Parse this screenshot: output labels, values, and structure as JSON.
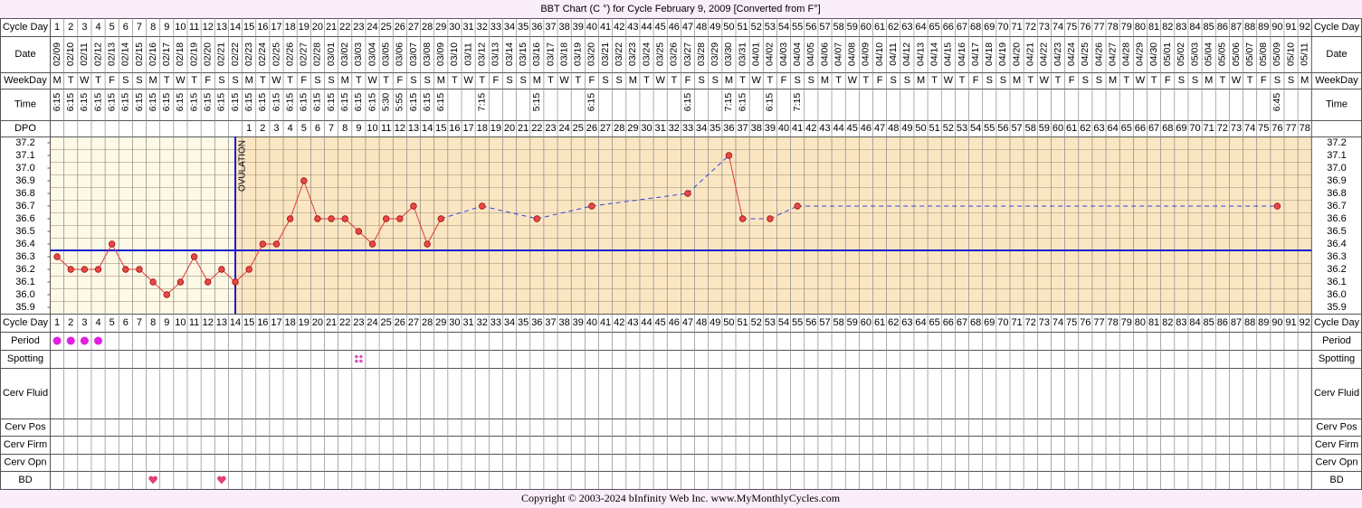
{
  "chart_data": {
    "type": "line",
    "title": "BBT Chart (C °) for Cycle February 9, 2009  [Converted from F°]",
    "footer": "Copyright © 2003-2024 bInfinity Web Inc.     www.MyMonthlyCycles.com",
    "row_labels": {
      "cycle_day": "Cycle Day",
      "date": "Date",
      "weekday": "WeekDay",
      "time": "Time",
      "dpo": "DPO",
      "period": "Period",
      "spotting": "Spotting",
      "cerv_fluid": "Cerv Fluid",
      "cerv_pos": "Cerv Pos",
      "cerv_firm": "Cerv Firm",
      "cerv_opn": "Cerv Opn",
      "bd": "BD"
    },
    "annotation": "OVULATION",
    "ovulation_day": 14,
    "coverline": 36.35,
    "cycle_days": [
      1,
      2,
      3,
      4,
      5,
      6,
      7,
      8,
      9,
      10,
      11,
      12,
      13,
      14,
      15,
      16,
      17,
      18,
      19,
      20,
      21,
      22,
      23,
      24,
      25,
      26,
      27,
      28,
      29,
      30,
      31,
      32,
      33,
      34,
      35,
      36,
      37,
      38,
      39,
      40,
      41,
      42,
      43,
      44,
      45,
      46,
      47,
      48,
      49,
      50,
      51,
      52,
      53,
      54,
      55,
      56,
      57,
      58,
      59,
      60,
      61,
      62,
      63,
      64,
      65,
      66,
      67,
      68,
      69,
      70,
      71,
      72,
      73,
      74,
      75,
      76,
      77,
      78,
      79,
      80,
      81,
      82,
      83,
      84,
      85,
      86,
      87,
      88,
      89,
      90,
      91,
      92
    ],
    "dates": [
      "02/09",
      "02/10",
      "02/11",
      "02/12",
      "02/13",
      "02/14",
      "02/15",
      "02/16",
      "02/17",
      "02/18",
      "02/19",
      "02/20",
      "02/21",
      "02/22",
      "02/23",
      "02/24",
      "02/25",
      "02/26",
      "02/27",
      "02/28",
      "03/01",
      "03/02",
      "03/03",
      "03/04",
      "03/05",
      "03/06",
      "03/07",
      "03/08",
      "03/09",
      "03/10",
      "03/11",
      "03/12",
      "03/13",
      "03/14",
      "03/15",
      "03/16",
      "03/17",
      "03/18",
      "03/19",
      "03/20",
      "03/21",
      "03/22",
      "03/23",
      "03/24",
      "03/25",
      "03/26",
      "03/27",
      "03/28",
      "03/29",
      "03/30",
      "03/31",
      "04/01",
      "04/02",
      "04/03",
      "04/04",
      "04/05",
      "04/06",
      "04/07",
      "04/08",
      "04/09",
      "04/10",
      "04/11",
      "04/12",
      "04/13",
      "04/14",
      "04/15",
      "04/16",
      "04/17",
      "04/18",
      "04/19",
      "04/20",
      "04/21",
      "04/22",
      "04/23",
      "04/24",
      "04/25",
      "04/26",
      "04/27",
      "04/28",
      "04/29",
      "04/30",
      "05/01",
      "05/02",
      "05/03",
      "05/04",
      "05/05",
      "05/06",
      "05/07",
      "05/08",
      "05/09",
      "05/10",
      "05/11"
    ],
    "weekdays": [
      "M",
      "T",
      "W",
      "T",
      "F",
      "S",
      "S",
      "M",
      "T",
      "W",
      "T",
      "F",
      "S",
      "S",
      "M",
      "T",
      "W",
      "T",
      "F",
      "S",
      "S",
      "M",
      "T",
      "W",
      "T",
      "F",
      "S",
      "S",
      "M",
      "T",
      "W",
      "T",
      "F",
      "S",
      "S",
      "M",
      "T",
      "W",
      "T",
      "F",
      "S",
      "S",
      "M",
      "T",
      "W",
      "T",
      "F",
      "S",
      "S",
      "M",
      "T",
      "W",
      "T",
      "F",
      "S",
      "S",
      "M",
      "T",
      "W",
      "T",
      "F",
      "S",
      "S",
      "M",
      "T",
      "W",
      "T",
      "F",
      "S",
      "S",
      "M",
      "T",
      "W",
      "T",
      "F",
      "S",
      "S",
      "M",
      "T",
      "W",
      "T",
      "F",
      "S",
      "S",
      "M",
      "T",
      "W",
      "T",
      "F",
      "S",
      "S",
      "M"
    ],
    "times": [
      "6:15",
      "6:15",
      "6:15",
      "6:15",
      "6:15",
      "6:15",
      "6:15",
      "6:15",
      "6:15",
      "6:15",
      "6:15",
      "6:15",
      "6:15",
      "6:15",
      "6:15",
      "6:15",
      "6:15",
      "6:15",
      "6:15",
      "6:15",
      "6:15",
      "6:15",
      "6:15",
      "6:15",
      "5:30",
      "5:55",
      "6:15",
      "6:15",
      "6:15",
      null,
      null,
      "7:15",
      null,
      null,
      null,
      "5:15",
      null,
      null,
      null,
      "6:15",
      null,
      null,
      null,
      null,
      null,
      null,
      "6:15",
      null,
      null,
      "7:15",
      "6:15",
      null,
      "6:15",
      null,
      "7:15",
      null,
      null,
      null,
      null,
      null,
      null,
      null,
      null,
      null,
      null,
      null,
      null,
      null,
      null,
      null,
      null,
      null,
      null,
      null,
      null,
      null,
      null,
      null,
      null,
      null,
      null,
      null,
      null,
      null,
      null,
      null,
      null,
      null,
      null,
      "6:45",
      null,
      null
    ],
    "dpo": [
      null,
      null,
      null,
      null,
      null,
      null,
      null,
      null,
      null,
      null,
      null,
      null,
      null,
      null,
      1,
      2,
      3,
      4,
      5,
      6,
      7,
      8,
      9,
      10,
      11,
      12,
      13,
      14,
      15,
      16,
      17,
      18,
      19,
      20,
      21,
      22,
      23,
      24,
      25,
      26,
      27,
      28,
      29,
      30,
      31,
      32,
      33,
      34,
      35,
      36,
      37,
      38,
      39,
      40,
      41,
      42,
      43,
      44,
      45,
      46,
      47,
      48,
      49,
      50,
      51,
      52,
      53,
      54,
      55,
      56,
      57,
      58,
      59,
      60,
      61,
      62,
      63,
      64,
      65,
      66,
      67,
      68,
      69,
      70,
      71,
      72,
      73,
      74,
      75,
      76,
      77,
      78
    ],
    "series": [
      {
        "name": "Temperature",
        "color": "#e03a3a",
        "values": [
          36.3,
          36.2,
          36.2,
          36.2,
          36.4,
          36.2,
          36.2,
          36.1,
          36.0,
          36.1,
          36.3,
          36.1,
          36.2,
          36.1,
          36.2,
          36.4,
          36.4,
          36.6,
          36.9,
          36.6,
          36.6,
          36.6,
          36.5,
          36.4,
          36.6,
          36.6,
          36.7,
          36.4,
          36.6,
          null,
          null,
          36.7,
          null,
          null,
          null,
          36.6,
          null,
          null,
          null,
          36.7,
          null,
          null,
          null,
          null,
          null,
          null,
          36.8,
          null,
          null,
          37.1,
          36.6,
          null,
          36.6,
          null,
          36.7,
          null,
          null,
          null,
          null,
          null,
          null,
          null,
          null,
          null,
          null,
          null,
          null,
          null,
          null,
          null,
          null,
          null,
          null,
          null,
          null,
          null,
          null,
          null,
          null,
          null,
          null,
          null,
          null,
          null,
          null,
          null,
          null,
          null,
          null,
          36.7,
          null,
          null
        ]
      }
    ],
    "gap_color": "#3344dd",
    "line_color": "#1a1acc",
    "period_days": [
      1,
      2,
      3,
      4
    ],
    "spotting_days": [
      23
    ],
    "bd_days": [
      8,
      13
    ],
    "ylim": [
      35.85,
      37.25
    ],
    "yticks": [
      37.2,
      37.1,
      {
        "value": 37,
        "label": "37.0"
      },
      36.9,
      36.8,
      36.7,
      36.6,
      36.5,
      36.4,
      36.3,
      36.2,
      36.1,
      {
        "value": 36,
        "label": "36.0"
      },
      35.9
    ],
    "grid": true
  }
}
